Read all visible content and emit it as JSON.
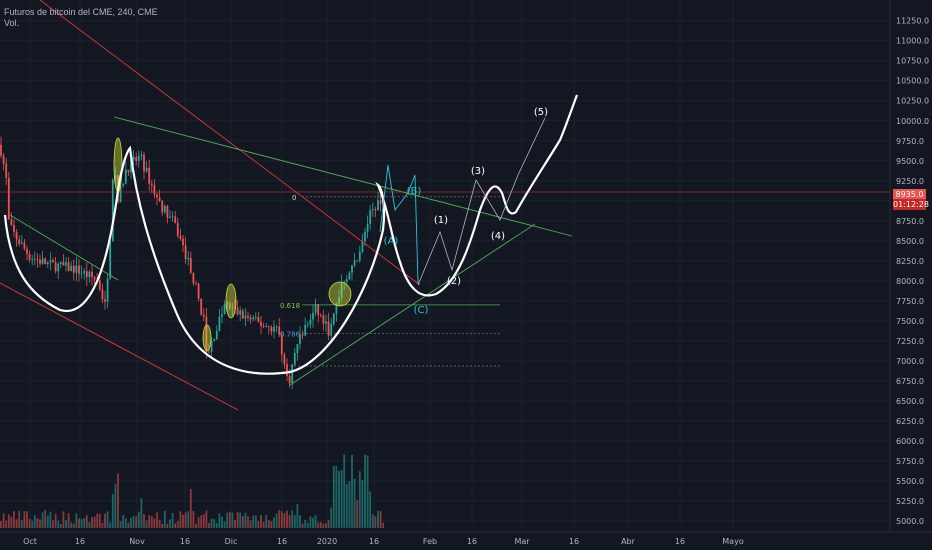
{
  "header": {
    "symbol_line": "Futuros de bitcoin del CME, 240, CME",
    "volume_label": "Vol."
  },
  "price_tag": {
    "price": "8935.0",
    "countdown": "01:12:28"
  },
  "chart_data": {
    "type": "candlestick",
    "y_axis": {
      "ylim": [
        4875,
        11350
      ],
      "ticks": [
        5000,
        5250,
        5500,
        5750,
        6000,
        6250,
        6500,
        6750,
        7000,
        7250,
        7500,
        7750,
        8000,
        8250,
        8500,
        8750,
        9000,
        9250,
        9500,
        9750,
        10000,
        10250,
        10500,
        10750,
        11000,
        11250
      ],
      "tick_labels": [
        "5000.0",
        "5250.0",
        "5500.0",
        "5750.0",
        "6000.0",
        "6250.0",
        "6500.0",
        "6750.0",
        "7000.0",
        "7250.0",
        "7500.0",
        "7750.0",
        "8000.0",
        "8250.0",
        "8500.0",
        "8750.0",
        "9000.0",
        "9250.0",
        "9500.0",
        "9750.0",
        "10000.0",
        "10250.0",
        "10500.0",
        "10750.0",
        "11000.0",
        "11250.0"
      ]
    },
    "x_axis": {
      "tick_labels": [
        "Oct",
        "16",
        "Nov",
        "16",
        "Dic",
        "16",
        "2020",
        "16",
        "Feb",
        "16",
        "Mar",
        "16",
        "Abr",
        "16",
        "Mayo"
      ]
    },
    "current_price": 8935,
    "fibonacci_levels": [
      {
        "label": "0",
        "price": 9050
      },
      {
        "label": "0.618",
        "price": 7700
      },
      {
        "label": "0.786",
        "price": 7340
      }
    ],
    "wave_labels_abc": [
      "(A)",
      "(B)",
      "(C)"
    ],
    "wave_labels_impulse": [
      "(1)",
      "(2)",
      "(3)",
      "(4)",
      "(5)"
    ],
    "colors": {
      "background": "#131722",
      "bull": "#26a69a",
      "bear": "#ef5350",
      "fib_line": "#4caf50",
      "channel_red": "#e53935",
      "projection": "#ffffff",
      "abc_labels": "#26c6da",
      "price_tag_bg": "#ef5350"
    }
  }
}
